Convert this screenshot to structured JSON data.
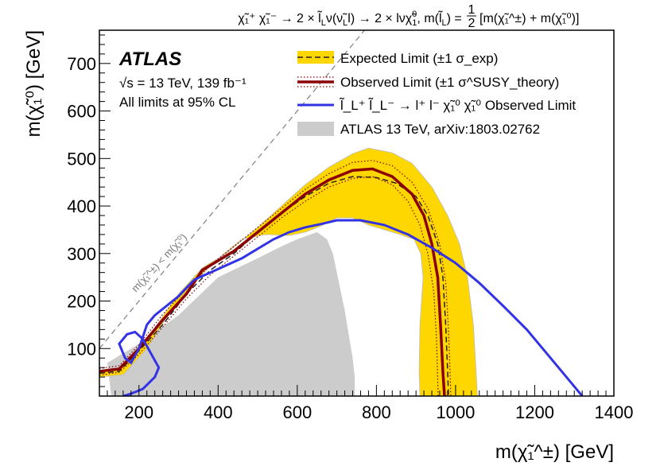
{
  "chart_data": {
    "type": "line",
    "title": "χ̃₁⁺ χ̃₁⁻ → 2 × l̃_L ν (ν̃_L l) → 2 × l ν χ̃₁⁰ , m(l̃_L) = 1/2 [m(χ̃₁^±) + m(χ̃₁⁰)]",
    "title_parts": {
      "process": "χ̃₁⁺ χ̃₁⁻ → 2 × l̃",
      "sub_L1": "L",
      "mid1": "ν(ν̃",
      "sub_L2": "L",
      "mid2": "l) → 2 × lν",
      "chi0": "χ̃",
      "chi0_sup": "0",
      "chi0_sub": "1",
      "mass_lhs": ", m(l̃",
      "sub_L3": "L",
      "mass_eq": ") =",
      "frac_num": "1",
      "frac_den": "2",
      "mass_rhs": "[m(χ̃₁^±) + m(χ̃₁⁰)]"
    },
    "xlabel": "m(χ̃₁^±) [GeV]",
    "ylabel": "m(χ̃₁⁰) [GeV]",
    "xlim": [
      100,
      1400
    ],
    "ylim": [
      0,
      770
    ],
    "x_ticks": [
      200,
      400,
      600,
      800,
      1000,
      1200,
      1400
    ],
    "y_ticks": [
      100,
      200,
      300,
      400,
      500,
      600,
      700
    ],
    "experiment": "ATLAS",
    "energy_label": "√s = 13 TeV, 139 fb⁻¹",
    "cl_label": "All limits at 95% CL",
    "kinematic_label": "m(χ̃₁^±) < m(χ̃₁⁰)",
    "legend": [
      {
        "id": "expected",
        "label": "Expected Limit (±1 σ_exp)"
      },
      {
        "id": "observed",
        "label": "Observed Limit (±1 σ^SUSY_theory)"
      },
      {
        "id": "slepton",
        "label": "l̃_L⁺ l̃_L⁻ → l⁺ l⁻ χ̃₁⁰ χ̃₁⁰ Observed Limit"
      },
      {
        "id": "previous",
        "label": "ATLAS 13 TeV, arXiv:1803.02762"
      }
    ],
    "series": [
      {
        "name": "Expected ±1σ band (outer)",
        "kind": "band",
        "points": [
          [
            100,
            50
          ],
          [
            150,
            58
          ],
          [
            220,
            120
          ],
          [
            300,
            215
          ],
          [
            360,
            270
          ],
          [
            420,
            300
          ],
          [
            500,
            355
          ],
          [
            560,
            400
          ],
          [
            620,
            445
          ],
          [
            680,
            482
          ],
          [
            740,
            510
          ],
          [
            780,
            522
          ],
          [
            840,
            512
          ],
          [
            890,
            490
          ],
          [
            940,
            440
          ],
          [
            980,
            380
          ],
          [
            1010,
            320
          ],
          [
            1030,
            250
          ],
          [
            1045,
            150
          ],
          [
            1052,
            50
          ],
          [
            1055,
            0
          ],
          [
            910,
            0
          ],
          [
            908,
            50
          ],
          [
            910,
            150
          ],
          [
            918,
            250
          ],
          [
            912,
            300
          ],
          [
            895,
            330
          ],
          [
            860,
            340
          ],
          [
            820,
            350
          ],
          [
            780,
            360
          ],
          [
            740,
            375
          ],
          [
            700,
            375
          ],
          [
            660,
            358
          ],
          [
            620,
            345
          ],
          [
            580,
            338
          ],
          [
            520,
            340
          ],
          [
            460,
            330
          ],
          [
            400,
            290
          ],
          [
            340,
            240
          ],
          [
            280,
            180
          ],
          [
            220,
            100
          ],
          [
            160,
            45
          ],
          [
            100,
            40
          ]
        ]
      },
      {
        "name": "Expected Limit",
        "kind": "dashed",
        "points": [
          [
            100,
            48
          ],
          [
            150,
            52
          ],
          [
            200,
            95
          ],
          [
            260,
            150
          ],
          [
            320,
            215
          ],
          [
            380,
            265
          ],
          [
            440,
            300
          ],
          [
            500,
            345
          ],
          [
            560,
            385
          ],
          [
            620,
            420
          ],
          [
            680,
            448
          ],
          [
            740,
            462
          ],
          [
            800,
            460
          ],
          [
            850,
            448
          ],
          [
            900,
            420
          ],
          [
            930,
            380
          ],
          [
            955,
            320
          ],
          [
            968,
            250
          ],
          [
            975,
            150
          ],
          [
            980,
            50
          ],
          [
            982,
            0
          ]
        ]
      },
      {
        "name": "Observed Limit",
        "kind": "solid",
        "points": [
          [
            100,
            52
          ],
          [
            150,
            57
          ],
          [
            200,
            100
          ],
          [
            260,
            160
          ],
          [
            320,
            215
          ],
          [
            340,
            240
          ],
          [
            360,
            265
          ],
          [
            400,
            285
          ],
          [
            440,
            305
          ],
          [
            500,
            345
          ],
          [
            560,
            385
          ],
          [
            620,
            425
          ],
          [
            680,
            455
          ],
          [
            740,
            475
          ],
          [
            790,
            478
          ],
          [
            840,
            462
          ],
          [
            890,
            425
          ],
          [
            920,
            380
          ],
          [
            940,
            320
          ],
          [
            955,
            250
          ],
          [
            962,
            150
          ],
          [
            968,
            50
          ],
          [
            972,
            0
          ]
        ]
      },
      {
        "name": "Observed −1σ theory",
        "kind": "dotted",
        "points": [
          [
            100,
            44
          ],
          [
            150,
            50
          ],
          [
            200,
            88
          ],
          [
            260,
            145
          ],
          [
            320,
            205
          ],
          [
            380,
            255
          ],
          [
            440,
            295
          ],
          [
            500,
            335
          ],
          [
            560,
            375
          ],
          [
            620,
            410
          ],
          [
            680,
            440
          ],
          [
            740,
            458
          ],
          [
            790,
            462
          ],
          [
            840,
            445
          ],
          [
            880,
            410
          ],
          [
            910,
            360
          ],
          [
            930,
            300
          ],
          [
            945,
            220
          ],
          [
            952,
            120
          ],
          [
            956,
            0
          ]
        ]
      },
      {
        "name": "Observed +1σ theory",
        "kind": "dotted",
        "points": [
          [
            100,
            58
          ],
          [
            150,
            64
          ],
          [
            200,
            108
          ],
          [
            260,
            172
          ],
          [
            320,
            225
          ],
          [
            380,
            275
          ],
          [
            440,
            315
          ],
          [
            500,
            355
          ],
          [
            560,
            395
          ],
          [
            620,
            435
          ],
          [
            680,
            468
          ],
          [
            740,
            492
          ],
          [
            790,
            496
          ],
          [
            840,
            485
          ],
          [
            890,
            450
          ],
          [
            930,
            395
          ],
          [
            960,
            320
          ],
          [
            975,
            240
          ],
          [
            982,
            140
          ],
          [
            986,
            50
          ],
          [
            988,
            0
          ]
        ]
      },
      {
        "name": "Slepton observed limit",
        "kind": "solid",
        "points": [
          [
            160,
            0
          ],
          [
            180,
            5
          ],
          [
            210,
            15
          ],
          [
            240,
            40
          ],
          [
            250,
            60
          ],
          [
            230,
            90
          ],
          [
            210,
            120
          ],
          [
            190,
            135
          ],
          [
            170,
            130
          ],
          [
            150,
            110
          ],
          [
            165,
            80
          ],
          [
            180,
            70
          ],
          [
            200,
            100
          ],
          [
            220,
            150
          ],
          [
            240,
            170
          ],
          [
            270,
            190
          ],
          [
            300,
            210
          ],
          [
            340,
            245
          ],
          [
            380,
            260
          ],
          [
            420,
            275
          ],
          [
            460,
            290
          ],
          [
            500,
            310
          ],
          [
            540,
            330
          ],
          [
            580,
            345
          ],
          [
            620,
            355
          ],
          [
            660,
            362
          ],
          [
            700,
            370
          ],
          [
            760,
            370
          ],
          [
            820,
            360
          ],
          [
            880,
            340
          ],
          [
            940,
            312
          ],
          [
            1000,
            280
          ],
          [
            1060,
            238
          ],
          [
            1120,
            190
          ],
          [
            1180,
            140
          ],
          [
            1240,
            80
          ],
          [
            1290,
            30
          ],
          [
            1320,
            0
          ]
        ]
      },
      {
        "name": "ATLAS 13 TeV, arXiv:1803.02762",
        "kind": "area",
        "points": [
          [
            130,
            0
          ],
          [
            120,
            70
          ],
          [
            150,
            85
          ],
          [
            200,
            110
          ],
          [
            250,
            140
          ],
          [
            300,
            170
          ],
          [
            350,
            210
          ],
          [
            400,
            250
          ],
          [
            450,
            270
          ],
          [
            500,
            290
          ],
          [
            560,
            315
          ],
          [
            600,
            330
          ],
          [
            650,
            345
          ],
          [
            675,
            330
          ],
          [
            690,
            300
          ],
          [
            700,
            260
          ],
          [
            710,
            220
          ],
          [
            720,
            180
          ],
          [
            730,
            130
          ],
          [
            740,
            80
          ],
          [
            745,
            40
          ],
          [
            745,
            0
          ]
        ]
      }
    ]
  }
}
